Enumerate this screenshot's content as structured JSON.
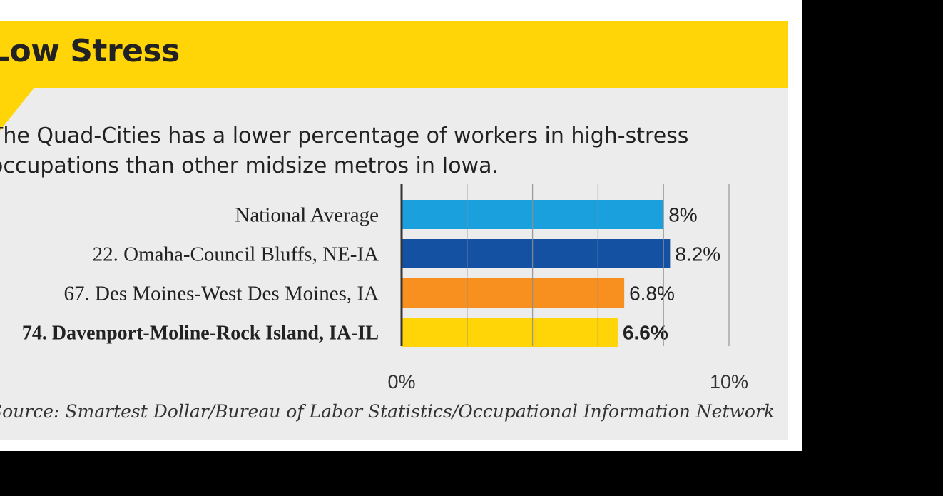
{
  "colors": {
    "header": "#ffd507",
    "panel": "#ececec",
    "frame": "#ffffff",
    "background": "#000000"
  },
  "header": {
    "title": "Low Stress"
  },
  "subtitle": "The Quad-Cities has a lower percentage of workers in high-stress occupations than other midsize metros in Iowa.",
  "source": "Source: Smartest Dollar/Bureau of Labor Statistics/Occupational Information Network",
  "chart_data": {
    "type": "bar",
    "orientation": "horizontal",
    "categories": [
      "National Average",
      "22. Omaha-Council Bluffs, NE-IA",
      "67. Des Moines-West Des Moines, IA",
      "74. Davenport-Moline-Rock Island, IA-IL"
    ],
    "values": [
      8,
      8.2,
      6.8,
      6.6
    ],
    "data_labels": [
      "8%",
      "8.2%",
      "6.8%",
      "6.6%"
    ],
    "bar_colors": [
      "#1aa1dd",
      "#1451a3",
      "#f7901e",
      "#ffd507"
    ],
    "highlight_index": 3,
    "xlim": [
      0,
      10
    ],
    "x_tick_labels": [
      "0%",
      "10%"
    ],
    "gridlines": "vertical",
    "grid_step": 2,
    "xlabel": "",
    "ylabel": ""
  }
}
